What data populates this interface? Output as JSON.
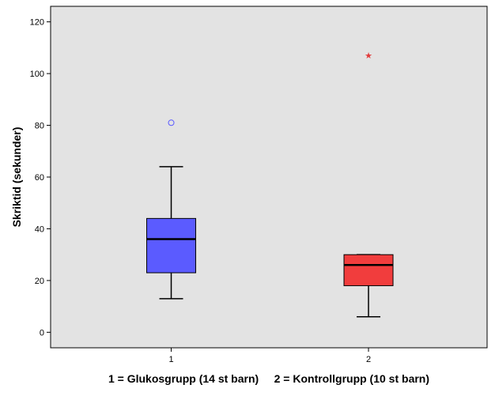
{
  "chart_data": {
    "type": "box",
    "title": "",
    "xlabel": "1 = Glukosgrupp (14 st barn)     2 = Kontrollgrupp (10 st barn)",
    "ylabel": "Skriktid (sekunder)",
    "ylim": [
      -6,
      126
    ],
    "yticks": [
      0,
      20,
      40,
      60,
      80,
      100,
      120
    ],
    "grid": false,
    "legend": "none",
    "categories": [
      "1",
      "2"
    ],
    "groups": [
      {
        "category": "1",
        "whisker_low": 13,
        "q1": 23,
        "median": 36,
        "q3": 44,
        "whisker_high": 64,
        "fill": "#5b5bff",
        "outliers": [
          {
            "value": 81,
            "marker": "circle"
          }
        ]
      },
      {
        "category": "2",
        "whisker_low": 6,
        "q1": 18,
        "median": 26,
        "q3": 30,
        "whisker_high": 30,
        "fill": "#f13d3d",
        "outliers": [
          {
            "value": 107,
            "marker": "star"
          }
        ]
      }
    ],
    "colors": {
      "plot_background": "#e3e3e3",
      "outlier_circle": "#5b5bff",
      "outlier_star": "#e23b3b",
      "line": "#000000"
    }
  }
}
